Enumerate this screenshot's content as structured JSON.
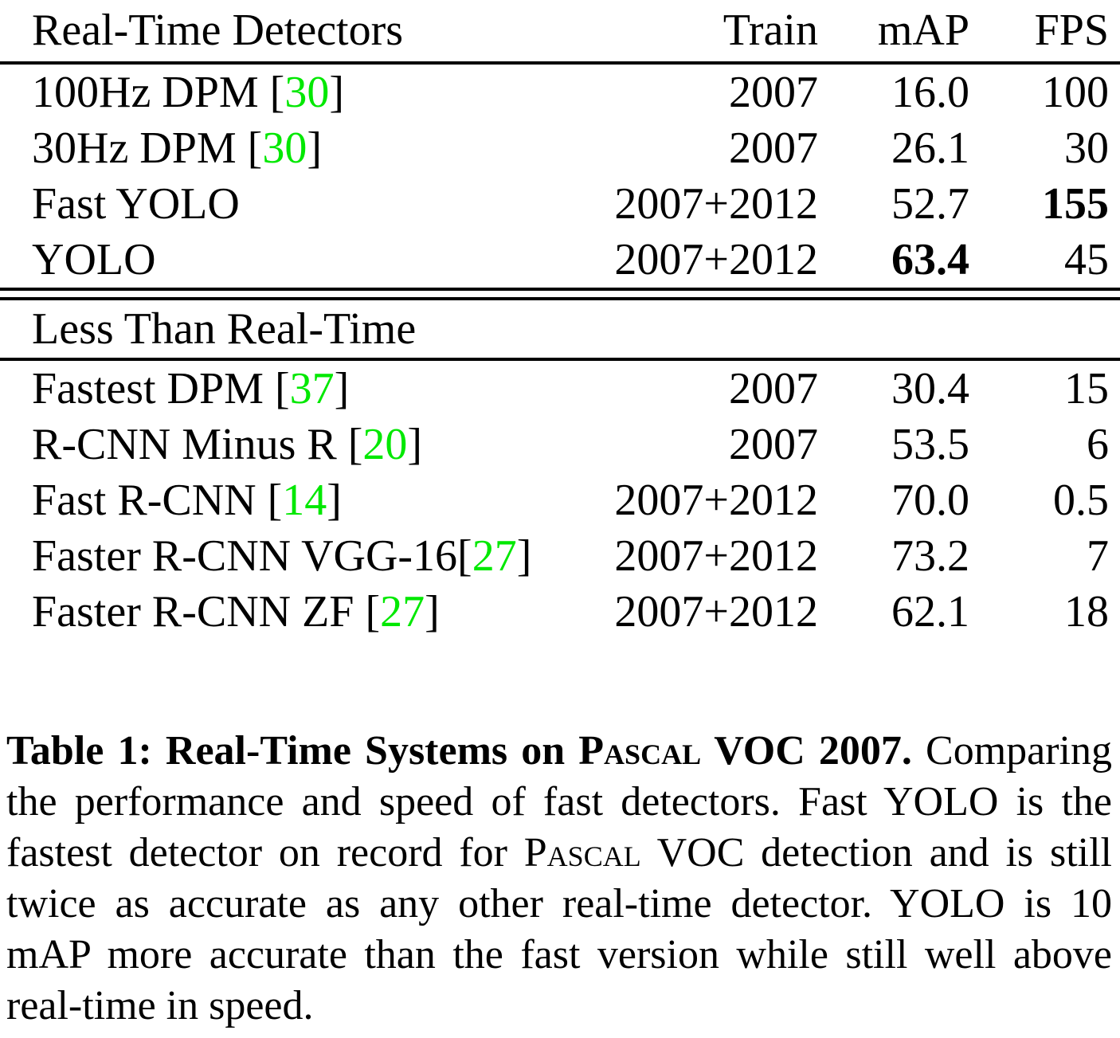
{
  "colors": {
    "citation_green": "#00e800"
  },
  "table": {
    "header": {
      "col1": "Real-Time Detectors",
      "col2": "Train",
      "col3": "mAP",
      "col4": "FPS"
    },
    "section1_rows": [
      {
        "name_pre": "100Hz DPM [",
        "cite": "30",
        "name_post": "]",
        "train": "2007",
        "map": "16.0",
        "fps": "100"
      },
      {
        "name_pre": "30Hz DPM [",
        "cite": "30",
        "name_post": "]",
        "train": "2007",
        "map": "26.1",
        "fps": "30"
      },
      {
        "name_pre": "Fast YOLO",
        "cite": "",
        "name_post": "",
        "train": "2007+2012",
        "map": "52.7",
        "fps": "155"
      },
      {
        "name_pre": "YOLO",
        "cite": "",
        "name_post": "",
        "train": "2007+2012",
        "map": "63.4",
        "fps": "45"
      }
    ],
    "section2_label": "Less Than Real-Time",
    "section2_rows": [
      {
        "name_pre": "Fastest DPM [",
        "cite": "37",
        "name_post": "]",
        "train": "2007",
        "map": "30.4",
        "fps": "15"
      },
      {
        "name_pre": "R-CNN Minus R [",
        "cite": "20",
        "name_post": "]",
        "train": "2007",
        "map": "53.5",
        "fps": "6"
      },
      {
        "name_pre": "Fast R-CNN [",
        "cite": "14",
        "name_post": "]",
        "train": "2007+2012",
        "map": "70.0",
        "fps": "0.5"
      },
      {
        "name_pre": "Faster R-CNN VGG-16[",
        "cite": "27",
        "name_post": "]",
        "train": "2007+2012",
        "map": "73.2",
        "fps": "7"
      },
      {
        "name_pre": "Faster R-CNN ZF [",
        "cite": "27",
        "name_post": "]",
        "train": "2007+2012",
        "map": "62.1",
        "fps": "18"
      }
    ]
  },
  "caption": {
    "title_prefix": "Table 1: ",
    "title_bold1": "Real-Time Systems on ",
    "title_smallcaps": "Pascal",
    "title_bold2": " VOC 2007.",
    "body1": " Comparing the performance and speed of fast detectors. Fast YOLO is the fastest detector on record for ",
    "body_smallcaps": "Pascal",
    "body2": " VOC detection and is still twice as accurate as any other real-time detector. YOLO is 10 mAP more accurate than the fast version while still well above real-time in speed."
  }
}
